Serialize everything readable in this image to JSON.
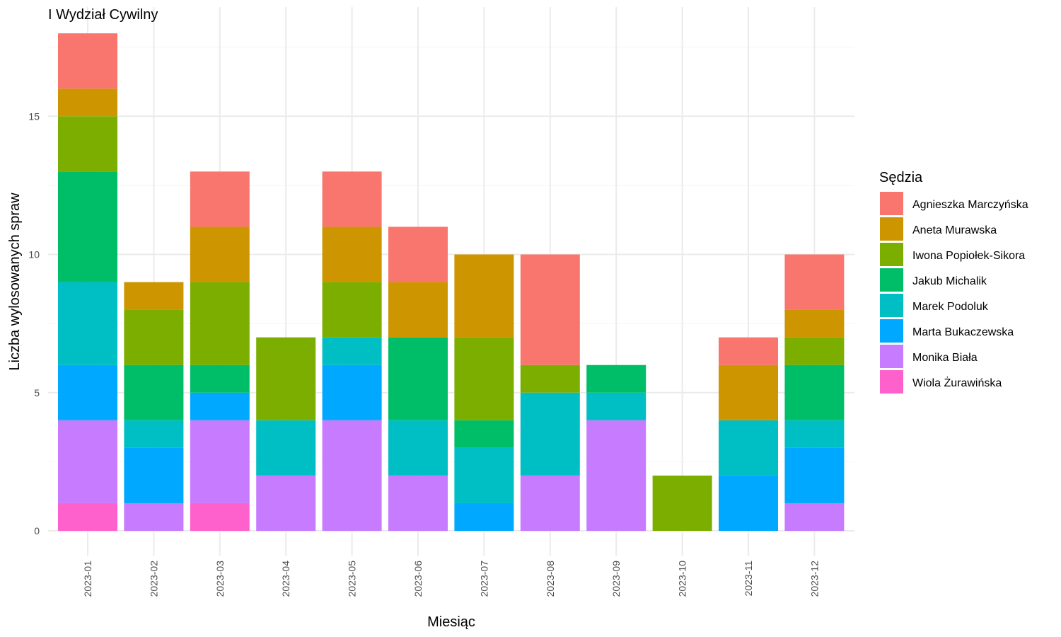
{
  "chart_data": {
    "type": "bar",
    "stacked": true,
    "title": "I Wydział Cywilny",
    "xlabel": "Miesiąc",
    "ylabel": "Liczba wylosowanych spraw",
    "categories": [
      "2023-01",
      "2023-02",
      "2023-03",
      "2023-04",
      "2023-05",
      "2023-06",
      "2023-07",
      "2023-08",
      "2023-09",
      "2023-10",
      "2023-11",
      "2023-12"
    ],
    "ylim": [
      0,
      18.9
    ],
    "yticks": [
      0,
      5,
      10,
      15
    ],
    "grid": true,
    "legend": {
      "title": "Sędzia",
      "position": "right"
    },
    "series": [
      {
        "name": "Agnieszka Marczyńska",
        "color": "#F8766D",
        "values": [
          2,
          0,
          2,
          0,
          2,
          2,
          0,
          4,
          0,
          0,
          1,
          2
        ]
      },
      {
        "name": "Aneta Murawska",
        "color": "#CD9600",
        "values": [
          1,
          1,
          2,
          0,
          2,
          2,
          3,
          0,
          0,
          0,
          2,
          1
        ]
      },
      {
        "name": "Iwona Popiołek-Sikora",
        "color": "#7CAE00",
        "values": [
          2,
          2,
          3,
          3,
          2,
          0,
          3,
          1,
          0,
          2,
          0,
          1
        ]
      },
      {
        "name": "Jakub Michalik",
        "color": "#00BE67",
        "values": [
          4,
          2,
          1,
          0,
          0,
          3,
          1,
          0,
          1,
          0,
          0,
          2
        ]
      },
      {
        "name": "Marek Podoluk",
        "color": "#00BFC4",
        "values": [
          3,
          1,
          0,
          2,
          1,
          2,
          2,
          3,
          1,
          0,
          2,
          1
        ]
      },
      {
        "name": "Marta Bukaczewska",
        "color": "#00A9FF",
        "values": [
          2,
          2,
          1,
          0,
          2,
          0,
          1,
          0,
          0,
          0,
          2,
          2
        ]
      },
      {
        "name": "Monika Biała",
        "color": "#C77CFF",
        "values": [
          3,
          1,
          3,
          2,
          4,
          2,
          0,
          2,
          4,
          0,
          0,
          1
        ]
      },
      {
        "name": "Wiola Żurawińska",
        "color": "#FF61CC",
        "values": [
          1,
          0,
          1,
          0,
          0,
          0,
          0,
          0,
          0,
          0,
          0,
          0
        ]
      }
    ]
  }
}
